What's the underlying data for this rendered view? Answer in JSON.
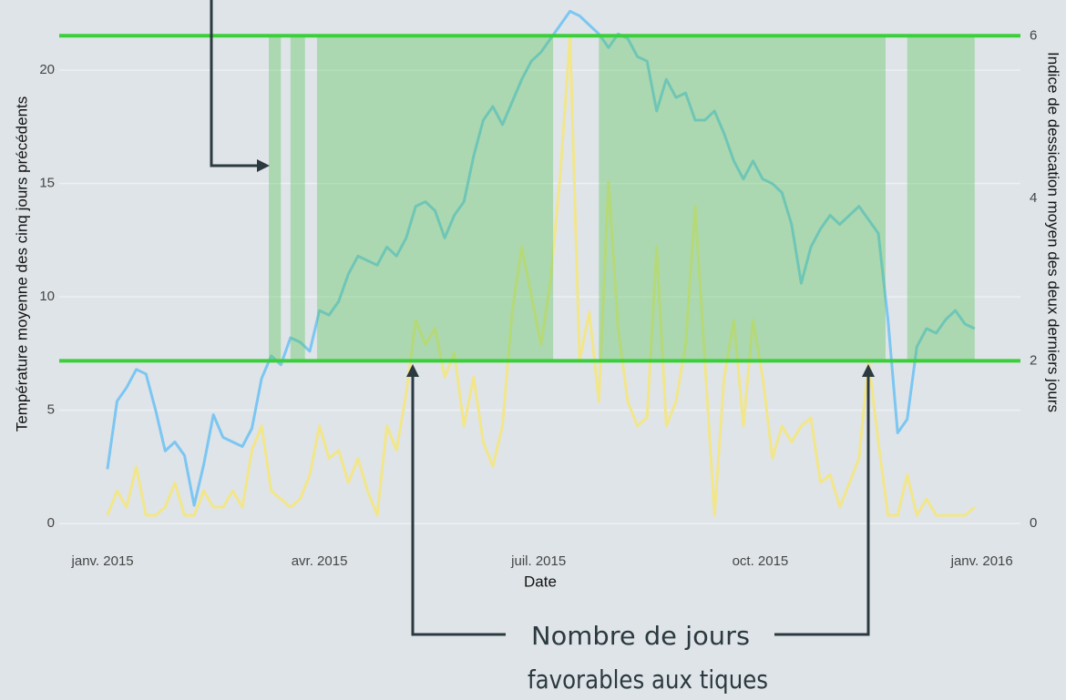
{
  "chart_data": {
    "type": "line",
    "xlabel": "Date",
    "ylabel": "Température moyenne des cinq jours précédents",
    "y2label": "Indice de dessication moyen des deux derniers jours",
    "xlim": [
      -18,
      381
    ],
    "xticks": [
      {
        "value": 0,
        "label": "janv. 2015"
      },
      {
        "value": 90,
        "label": "avr. 2015"
      },
      {
        "value": 181,
        "label": "juil. 2015"
      },
      {
        "value": 273,
        "label": "oct. 2015"
      },
      {
        "value": 365,
        "label": "janv. 2016"
      }
    ],
    "ylim": [
      -1.0,
      23.1
    ],
    "yticks": [
      0,
      5,
      10,
      15,
      20
    ],
    "y2lim": [
      -0.28,
      6.44
    ],
    "y2ticks": [
      0,
      2,
      4,
      6
    ],
    "grid": true,
    "x": [
      2,
      6,
      10,
      14,
      18,
      22,
      26,
      30,
      34,
      38,
      42,
      46,
      50,
      54,
      58,
      62,
      66,
      70,
      74,
      78,
      82,
      86,
      90,
      94,
      98,
      102,
      106,
      110,
      114,
      118,
      122,
      126,
      130,
      134,
      138,
      142,
      146,
      150,
      154,
      158,
      162,
      166,
      170,
      174,
      178,
      182,
      186,
      190,
      194,
      198,
      202,
      206,
      210,
      214,
      218,
      222,
      226,
      230,
      234,
      238,
      242,
      246,
      250,
      254,
      258,
      262,
      266,
      270,
      274,
      278,
      282,
      286,
      290,
      294,
      298,
      302,
      306,
      310,
      314,
      318,
      322,
      326,
      330,
      334,
      338,
      342,
      346,
      350,
      354,
      358,
      362
    ],
    "series": [
      {
        "color": "#f2e68a",
        "axis": "y2",
        "values": [
          0.1,
          0.4,
          0.2,
          0.7,
          0.1,
          0.1,
          0.2,
          0.5,
          0.1,
          0.1,
          0.4,
          0.2,
          0.2,
          0.4,
          0.2,
          0.9,
          1.2,
          0.4,
          0.3,
          0.2,
          0.3,
          0.6,
          1.2,
          0.8,
          0.9,
          0.5,
          0.8,
          0.4,
          0.1,
          1.2,
          0.9,
          1.6,
          2.5,
          2.2,
          2.4,
          1.8,
          2.1,
          1.2,
          1.8,
          1.0,
          0.7,
          1.2,
          2.6,
          3.4,
          2.8,
          2.2,
          3.0,
          4.3,
          6.0,
          2.0,
          2.6,
          1.5,
          4.2,
          2.4,
          1.5,
          1.2,
          1.3,
          3.4,
          1.2,
          1.5,
          2.2,
          3.9,
          2.0,
          0.1,
          1.8,
          2.5,
          1.2,
          2.5,
          1.8,
          0.8,
          1.2,
          1.0,
          1.2,
          1.3,
          0.5,
          0.6,
          0.2,
          0.5,
          0.8,
          2.0,
          1.0,
          0.1,
          0.1,
          0.6,
          0.1,
          0.3,
          0.1,
          0.1,
          0.1,
          0.1,
          0.2
        ]
      },
      {
        "color": "#7cc6f2",
        "axis": "y",
        "values": [
          2.4,
          5.4,
          6.0,
          6.8,
          6.6,
          5.0,
          3.2,
          3.6,
          3.0,
          0.8,
          2.6,
          4.8,
          3.8,
          3.6,
          3.4,
          4.2,
          6.4,
          7.4,
          7.0,
          8.2,
          8.0,
          7.6,
          9.4,
          9.2,
          9.8,
          11.0,
          11.8,
          11.6,
          11.4,
          12.2,
          11.8,
          12.6,
          14.0,
          14.2,
          13.8,
          12.6,
          13.6,
          14.2,
          16.2,
          17.8,
          18.4,
          17.6,
          18.6,
          19.6,
          20.4,
          20.8,
          21.4,
          22.0,
          22.6,
          22.4,
          22.0,
          21.6,
          21.0,
          21.6,
          21.4,
          20.6,
          20.4,
          18.2,
          19.6,
          18.8,
          19.0,
          17.8,
          17.8,
          18.2,
          17.2,
          16.0,
          15.2,
          16.0,
          15.2,
          15.0,
          14.6,
          13.2,
          10.6,
          12.2,
          13.0,
          13.6,
          13.2,
          13.6,
          14.0,
          13.4,
          12.8,
          9.0,
          4.0,
          4.6,
          7.8,
          8.6,
          8.4,
          9.0,
          9.4,
          8.8,
          8.6
        ]
      }
    ],
    "thresholds_y2": [
      2,
      6
    ],
    "threshold_color": "#3ccf3c",
    "shaded_ranges": [
      [
        69,
        74
      ],
      [
        78,
        84
      ],
      [
        89,
        187
      ],
      [
        206,
        325
      ],
      [
        334,
        362
      ]
    ],
    "shade_color": "#5cc65c",
    "annotation": [
      "Nombre de jours",
      "favorables aux tiques"
    ]
  }
}
